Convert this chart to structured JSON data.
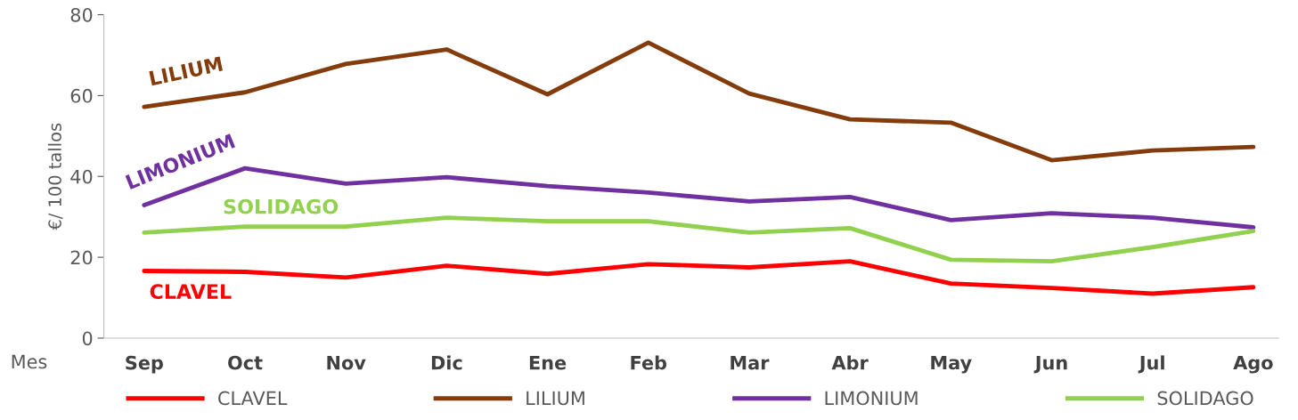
{
  "chart_data": {
    "type": "line",
    "ylabel": "€/ 100 tallos",
    "xlabel": "Mes",
    "categories": [
      "Sep",
      "Oct",
      "Nov",
      "Dic",
      "Ene",
      "Feb",
      "Mar",
      "Abr",
      "May",
      "Jun",
      "Jul",
      "Ago"
    ],
    "series": [
      {
        "name": "CLAVEL",
        "color": "#ff0000",
        "values": [
          16.6,
          16.4,
          15.0,
          17.9,
          15.9,
          18.3,
          17.5,
          19.0,
          13.5,
          12.4,
          11.0,
          12.6
        ]
      },
      {
        "name": "LILIUM",
        "color": "#843c0c",
        "values": [
          57.2,
          60.8,
          67.8,
          71.4,
          60.3,
          73.1,
          60.5,
          54.1,
          53.3,
          44.0,
          46.4,
          47.3
        ]
      },
      {
        "name": "LIMONIUM",
        "color": "#7030a0",
        "values": [
          32.9,
          42.0,
          38.2,
          39.8,
          37.6,
          36.0,
          33.8,
          34.9,
          29.2,
          30.9,
          29.8,
          27.4
        ]
      },
      {
        "name": "SOLIDAGO",
        "color": "#92d050",
        "values": [
          26.1,
          27.6,
          27.6,
          29.8,
          28.9,
          28.9,
          26.1,
          27.2,
          19.4,
          19.0,
          22.5,
          26.5
        ]
      }
    ],
    "annotations": [
      "CLAVEL",
      "LILIUM",
      "LIMONIUM",
      "SOLIDAGO"
    ],
    "ylim": [
      0,
      80
    ],
    "yticks": [
      0,
      20,
      40,
      60,
      80
    ],
    "grid": false,
    "legend": "bottom",
    "line_style": "solid",
    "marker": "none"
  }
}
